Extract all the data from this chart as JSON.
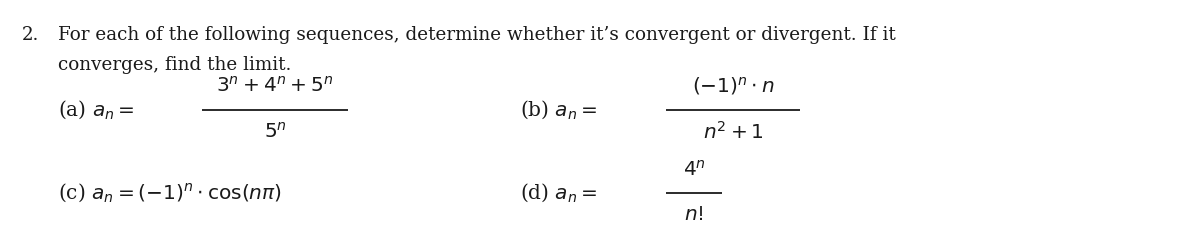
{
  "background_color": "#ffffff",
  "text_color": "#1a1a1a",
  "fig_width": 11.84,
  "fig_height": 2.48,
  "dpi": 100,
  "font_size_text": 13.2,
  "font_size_math": 14.5,
  "font_family": "DejaVu Serif",
  "num2": "2.",
  "line1": "For each of the following sequences, determine whether it’s convergent or divergent. If it",
  "line2": "converges, find the limit.",
  "a_label": "(a) $a_n =$",
  "a_num": "$3^n + 4^n + 5^n$",
  "a_den": "$5^n$",
  "b_label": "(b) $a_n =$",
  "b_num": "$(-1)^n \\cdot n$",
  "b_den": "$n^2 + 1$",
  "c_expr": "(c) $a_n = (-1)^n \\cdot \\cos(n\\pi)$",
  "d_label": "(d) $a_n =$",
  "d_num": "$4^n$",
  "d_den": "$n!$"
}
